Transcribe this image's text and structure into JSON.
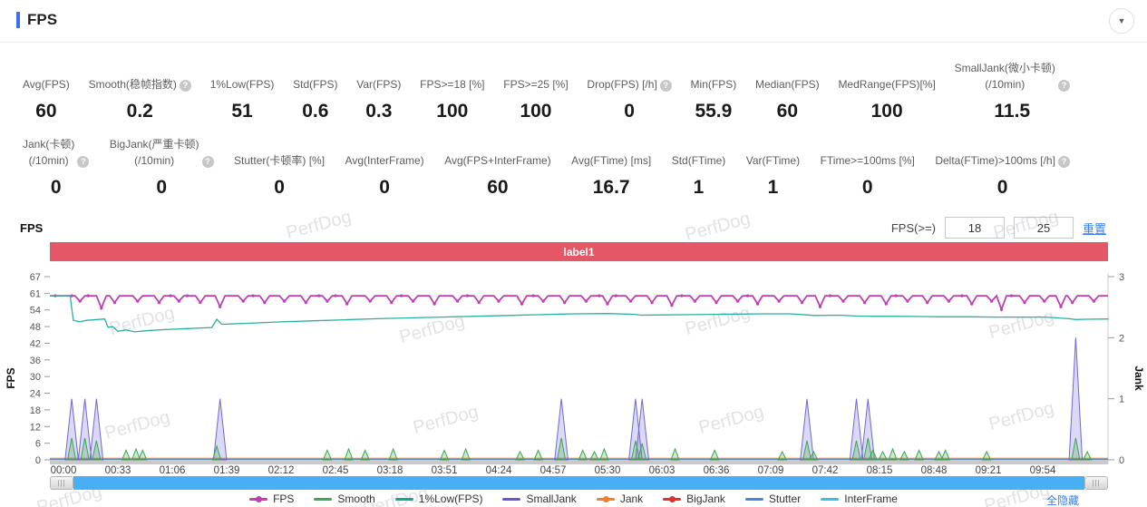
{
  "header": {
    "title": "FPS"
  },
  "stats_row1": [
    {
      "label": "Avg(FPS)",
      "value": "60"
    },
    {
      "label": "Smooth(稳帧指数)",
      "value": "0.2",
      "help": true
    },
    {
      "label": "1%Low(FPS)",
      "value": "51"
    },
    {
      "label": "Std(FPS)",
      "value": "0.6"
    },
    {
      "label": "Var(FPS)",
      "value": "0.3"
    },
    {
      "label": "FPS>=18 [%]",
      "value": "100"
    },
    {
      "label": "FPS>=25 [%]",
      "value": "100"
    },
    {
      "label": "Drop(FPS) [/h]",
      "value": "0",
      "help": true
    },
    {
      "label": "Min(FPS)",
      "value": "55.9"
    },
    {
      "label": "Median(FPS)",
      "value": "60"
    },
    {
      "label": "MedRange(FPS)[%]",
      "value": "100"
    },
    {
      "label": "SmallJank(微小卡顿)\n(/10min)",
      "value": "11.5",
      "help": true
    }
  ],
  "stats_row2": [
    {
      "label": "Jank(卡顿)\n(/10min)",
      "value": "0",
      "help": true
    },
    {
      "label": "BigJank(严重卡顿)\n(/10min)",
      "value": "0",
      "help": true
    },
    {
      "label": "Stutter(卡顿率) [%]",
      "value": "0"
    },
    {
      "label": "Avg(InterFrame)",
      "value": "0"
    },
    {
      "label": "Avg(FPS+InterFrame)",
      "value": "60"
    },
    {
      "label": "Avg(FTime) [ms]",
      "value": "16.7"
    },
    {
      "label": "Std(FTime)",
      "value": "1"
    },
    {
      "label": "Var(FTime)",
      "value": "1"
    },
    {
      "label": "FTime>=100ms [%]",
      "value": "0"
    },
    {
      "label": "Delta(FTime)>100ms [/h]",
      "value": "0",
      "help": true
    }
  ],
  "chart_controls": {
    "section_title": "FPS",
    "fps_ge_label": "FPS(>=)",
    "input1": "18",
    "input2": "25",
    "reset_label": "重置"
  },
  "banner": {
    "text": "label1",
    "color": "#e45766"
  },
  "watermark": "PerfDog",
  "hide_all_label": "全隐藏",
  "legend": [
    {
      "name": "FPS",
      "color": "#bf3eb3",
      "dot": true
    },
    {
      "name": "Smooth",
      "color": "#3aa84e",
      "dot": false
    },
    {
      "name": "1%Low(FPS)",
      "color": "#17a398",
      "dot": false
    },
    {
      "name": "SmallJank",
      "color": "#5b5bd6",
      "dot": false
    },
    {
      "name": "Jank",
      "color": "#f07f2e",
      "dot": true
    },
    {
      "name": "BigJank",
      "color": "#e23030",
      "dot": true
    },
    {
      "name": "Stutter",
      "color": "#4a86d8",
      "dot": false
    },
    {
      "name": "InterFrame",
      "color": "#2fc4e8",
      "dot": false
    }
  ],
  "chart_data": {
    "type": "line",
    "title": "FPS",
    "x_axis": {
      "unit": "mm:ss",
      "tick_interval_s": 33,
      "ticks": [
        "00:00",
        "00:33",
        "01:06",
        "01:39",
        "02:12",
        "02:45",
        "03:18",
        "03:51",
        "04:24",
        "04:57",
        "05:30",
        "06:03",
        "06:36",
        "07:09",
        "07:42",
        "08:15",
        "08:48",
        "09:21",
        "09:54"
      ],
      "xlim_s": [
        -8,
        634
      ]
    },
    "y_axis_left": {
      "label": "FPS",
      "ticks": [
        67,
        61,
        54,
        48,
        42,
        36,
        30,
        24,
        18,
        12,
        6,
        0
      ],
      "range": [
        0,
        67
      ]
    },
    "y_axis_right": {
      "label": "Jank",
      "ticks": [
        3,
        2,
        1,
        0
      ],
      "range": [
        0,
        3
      ]
    },
    "series": [
      {
        "name": "FPS",
        "color": "#bf3eb3",
        "axis": "left",
        "style": "line_dots",
        "base": 60,
        "dips": [
          [
            10,
            58
          ],
          [
            23,
            55.5
          ],
          [
            31,
            57.5
          ],
          [
            45,
            58
          ],
          [
            58,
            57.5
          ],
          [
            70,
            58
          ],
          [
            83,
            57.5
          ],
          [
            95,
            56
          ],
          [
            109,
            58
          ],
          [
            122,
            57.5
          ],
          [
            134,
            58
          ],
          [
            147,
            57.5
          ],
          [
            160,
            58
          ],
          [
            172,
            57
          ],
          [
            186,
            58
          ],
          [
            199,
            57.5
          ],
          [
            212,
            58
          ],
          [
            225,
            57
          ],
          [
            239,
            58
          ],
          [
            252,
            57.5
          ],
          [
            264,
            58
          ],
          [
            278,
            57
          ],
          [
            291,
            58
          ],
          [
            304,
            57.5
          ],
          [
            317,
            58
          ],
          [
            330,
            57
          ],
          [
            344,
            58
          ],
          [
            357,
            57.5
          ],
          [
            369,
            56.5
          ],
          [
            383,
            58
          ],
          [
            396,
            57.5
          ],
          [
            409,
            58
          ],
          [
            421,
            57
          ],
          [
            434,
            58
          ],
          [
            448,
            57.5
          ],
          [
            459,
            56
          ],
          [
            473,
            58
          ],
          [
            486,
            57.5
          ],
          [
            499,
            57
          ],
          [
            512,
            58
          ],
          [
            524,
            57.5
          ],
          [
            537,
            58
          ],
          [
            551,
            57
          ],
          [
            563,
            58
          ],
          [
            569,
            55
          ],
          [
            583,
            57.5
          ],
          [
            595,
            58
          ],
          [
            605,
            56
          ],
          [
            612,
            57.5
          ],
          [
            625,
            58
          ]
        ]
      },
      {
        "name": "1%Low(FPS)",
        "color": "#2aaf9f",
        "axis": "left",
        "style": "line",
        "points": [
          [
            -8,
            60
          ],
          [
            4,
            60
          ],
          [
            6,
            51
          ],
          [
            10,
            50.5
          ],
          [
            14,
            51
          ],
          [
            25,
            51.5
          ],
          [
            27,
            48.5
          ],
          [
            30,
            48.7
          ],
          [
            33,
            47
          ],
          [
            38,
            47.5
          ],
          [
            43,
            46.8
          ],
          [
            50,
            47.2
          ],
          [
            60,
            47.6
          ],
          [
            75,
            48
          ],
          [
            90,
            48.4
          ],
          [
            93,
            51.4
          ],
          [
            96,
            49.6
          ],
          [
            110,
            49.9
          ],
          [
            130,
            50.4
          ],
          [
            150,
            50.8
          ],
          [
            170,
            51.2
          ],
          [
            190,
            51.6
          ],
          [
            210,
            51.9
          ],
          [
            230,
            52.2
          ],
          [
            250,
            52.5
          ],
          [
            270,
            52.8
          ],
          [
            290,
            53.1
          ],
          [
            302,
            53.3
          ],
          [
            310,
            53.4
          ],
          [
            330,
            53.5
          ],
          [
            347,
            53.2
          ],
          [
            350,
            52.9
          ],
          [
            365,
            53
          ],
          [
            380,
            53.1
          ],
          [
            395,
            53.2
          ],
          [
            410,
            53.3
          ],
          [
            425,
            53.4
          ],
          [
            440,
            53.4
          ],
          [
            451,
            53
          ],
          [
            455,
            52.8
          ],
          [
            470,
            52.9
          ],
          [
            481,
            52.6
          ],
          [
            490,
            52.5
          ],
          [
            505,
            52.5
          ],
          [
            520,
            52.4
          ],
          [
            535,
            52.3
          ],
          [
            550,
            52.3
          ],
          [
            565,
            52.2
          ],
          [
            580,
            52.2
          ],
          [
            595,
            52.2
          ],
          [
            610,
            51.6
          ],
          [
            614,
            51.3
          ],
          [
            620,
            51.4
          ],
          [
            634,
            51.5
          ]
        ]
      },
      {
        "name": "Smooth",
        "color": "#3aa84e",
        "axis": "left",
        "style": "spikes",
        "half_width_s": 2.5,
        "spikes": [
          [
            5,
            8
          ],
          [
            13,
            8
          ],
          [
            20,
            7
          ],
          [
            38,
            3.5
          ],
          [
            44,
            4
          ],
          [
            48,
            3.5
          ],
          [
            93,
            5
          ],
          [
            160,
            3.5
          ],
          [
            173,
            4
          ],
          [
            183,
            3.5
          ],
          [
            200,
            4
          ],
          [
            231,
            3.5
          ],
          [
            244,
            4
          ],
          [
            277,
            3
          ],
          [
            288,
            3.5
          ],
          [
            302,
            8
          ],
          [
            315,
            3.5
          ],
          [
            322,
            3
          ],
          [
            328,
            4
          ],
          [
            347,
            7
          ],
          [
            351,
            6
          ],
          [
            371,
            4
          ],
          [
            395,
            3.5
          ],
          [
            436,
            3
          ],
          [
            451,
            7
          ],
          [
            455,
            3
          ],
          [
            481,
            7
          ],
          [
            488,
            8
          ],
          [
            491,
            3.5
          ],
          [
            497,
            3
          ],
          [
            503,
            4
          ],
          [
            510,
            3
          ],
          [
            519,
            3.5
          ],
          [
            531,
            3
          ],
          [
            535,
            3.5
          ],
          [
            560,
            3
          ],
          [
            614,
            8
          ],
          [
            621,
            3
          ]
        ]
      },
      {
        "name": "SmallJank",
        "color": "#6f68d8",
        "axis": "right",
        "style": "spikes",
        "half_width_s": 4,
        "spikes": [
          [
            5,
            1
          ],
          [
            13,
            1
          ],
          [
            20,
            1
          ],
          [
            95,
            1
          ],
          [
            302,
            1
          ],
          [
            347,
            1
          ],
          [
            351,
            1
          ],
          [
            451,
            1
          ],
          [
            481,
            1
          ],
          [
            488,
            1
          ],
          [
            614,
            2
          ]
        ]
      },
      {
        "name": "Jank",
        "color": "#eda05e",
        "axis": "right",
        "style": "flat",
        "value": 0
      },
      {
        "name": "BigJank",
        "color": "#e23030",
        "axis": "right",
        "style": "flat",
        "value": 0
      },
      {
        "name": "Stutter",
        "color": "#4a86d8",
        "axis": "left",
        "style": "flat",
        "value": 0
      },
      {
        "name": "InterFrame",
        "color": "#2fc4e8",
        "axis": "left",
        "style": "flat",
        "value": 0
      }
    ]
  }
}
